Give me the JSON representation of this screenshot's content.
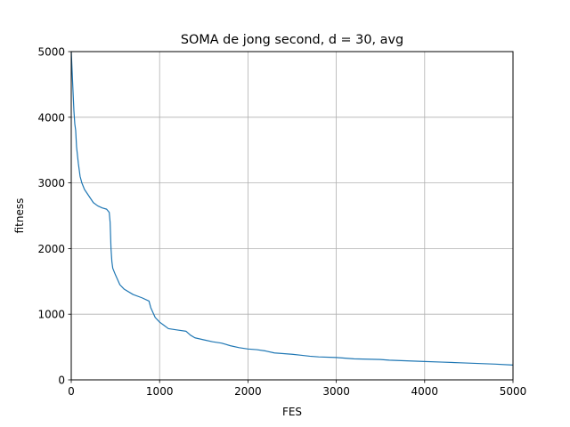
{
  "chart_data": {
    "type": "line",
    "title": "SOMA de jong second, d = 30, avg",
    "xlabel": "FES",
    "ylabel": "fitness",
    "xlim": [
      0,
      5000
    ],
    "ylim": [
      0,
      5000
    ],
    "xticks": [
      0,
      1000,
      2000,
      3000,
      4000,
      5000
    ],
    "yticks": [
      0,
      1000,
      2000,
      3000,
      4000,
      5000
    ],
    "grid": true,
    "line_color": "#1f77b4",
    "series": [
      {
        "x": [
          0,
          10,
          20,
          30,
          40,
          50,
          60,
          80,
          100,
          120,
          150,
          200,
          250,
          300,
          350,
          400,
          430,
          440,
          450,
          460,
          470,
          500,
          550,
          600,
          700,
          800,
          880,
          900,
          950,
          1000,
          1050,
          1100,
          1200,
          1300,
          1350,
          1400,
          1500,
          1600,
          1700,
          1800,
          1900,
          2000,
          2100,
          2200,
          2300,
          2400,
          2500,
          2600,
          2700,
          2800,
          3000,
          3200,
          3500,
          3600,
          3800,
          4000,
          4200,
          4400,
          4600,
          4800,
          5000
        ],
        "values": [
          5000,
          4700,
          4400,
          4100,
          3900,
          3800,
          3550,
          3300,
          3100,
          3000,
          2900,
          2800,
          2700,
          2650,
          2620,
          2600,
          2550,
          2400,
          2000,
          1800,
          1700,
          1600,
          1450,
          1380,
          1300,
          1250,
          1200,
          1100,
          950,
          880,
          830,
          780,
          760,
          740,
          680,
          640,
          610,
          580,
          560,
          520,
          490,
          470,
          460,
          440,
          410,
          400,
          390,
          375,
          360,
          350,
          340,
          320,
          310,
          300,
          290,
          280,
          270,
          260,
          250,
          240,
          225
        ]
      }
    ]
  }
}
